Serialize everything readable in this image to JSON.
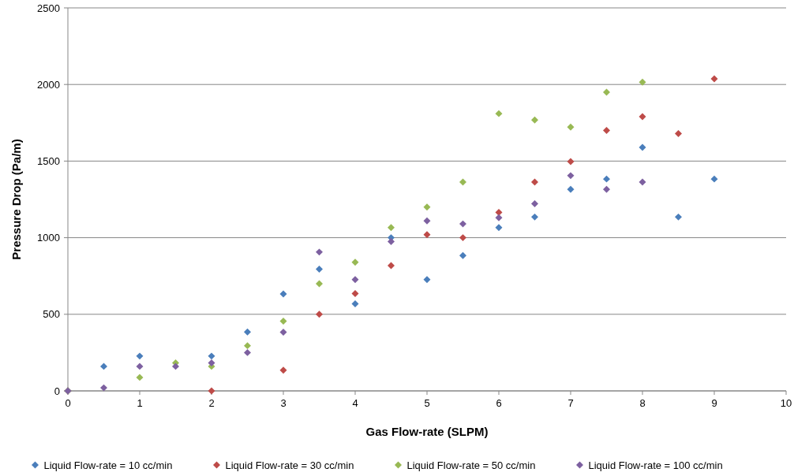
{
  "chart_data": {
    "type": "scatter",
    "xlabel": "Gas Flow-rate (SLPM)",
    "ylabel": "Pressure Drop (Pa/m)",
    "xlim": [
      0,
      10
    ],
    "xticks": [
      0,
      1,
      2,
      3,
      4,
      5,
      6,
      7,
      8,
      9,
      10
    ],
    "ylim": [
      0,
      2500
    ],
    "yticks": [
      0,
      500,
      1000,
      1500,
      2000,
      2500
    ],
    "grid": "y",
    "legend": "bottom",
    "marker": "diamond",
    "series": [
      {
        "name": "Liquid Flow-rate = 10 cc/min",
        "color": "#4a7ebb",
        "x": [
          0,
          0.5,
          1,
          2,
          2.5,
          3,
          3.5,
          4,
          4.5,
          5,
          5.5,
          6,
          6.5,
          7,
          7.5,
          8,
          8.5,
          9
        ],
        "values": [
          0,
          160,
          227,
          227,
          385,
          633,
          795,
          568,
          1000,
          727,
          883,
          1066,
          1135,
          1316,
          1383,
          1590,
          1135,
          1383
        ]
      },
      {
        "name": "Liquid Flow-rate = 30 cc/min",
        "color": "#be4b48",
        "x": [
          0,
          2,
          3,
          3.5,
          4,
          4.5,
          5,
          5.5,
          6,
          6.5,
          7,
          7.5,
          8,
          8.5,
          9
        ],
        "values": [
          0,
          0,
          135,
          500,
          635,
          818,
          1020,
          1000,
          1165,
          1363,
          1497,
          1700,
          1790,
          1680,
          2037
        ]
      },
      {
        "name": "Liquid Flow-rate = 50 cc/min",
        "color": "#98b954",
        "x": [
          0,
          1,
          1.5,
          2,
          2.5,
          3,
          3.5,
          4,
          4.5,
          5,
          5.5,
          6,
          6.5,
          7,
          7.5,
          8
        ],
        "values": [
          0,
          88,
          183,
          160,
          295,
          455,
          700,
          840,
          1066,
          1200,
          1363,
          1810,
          1768,
          1722,
          1950,
          2015
        ]
      },
      {
        "name": "Liquid Flow-rate = 100 cc/min",
        "color": "#7d60a0",
        "x": [
          0,
          0.5,
          1,
          1.5,
          2,
          2.5,
          3,
          3.5,
          4,
          4.5,
          5,
          5.5,
          6,
          6.5,
          7,
          7.5,
          8
        ],
        "values": [
          0,
          20,
          160,
          160,
          183,
          250,
          383,
          906,
          727,
          975,
          1110,
          1090,
          1130,
          1222,
          1405,
          1316,
          1363
        ]
      }
    ]
  }
}
